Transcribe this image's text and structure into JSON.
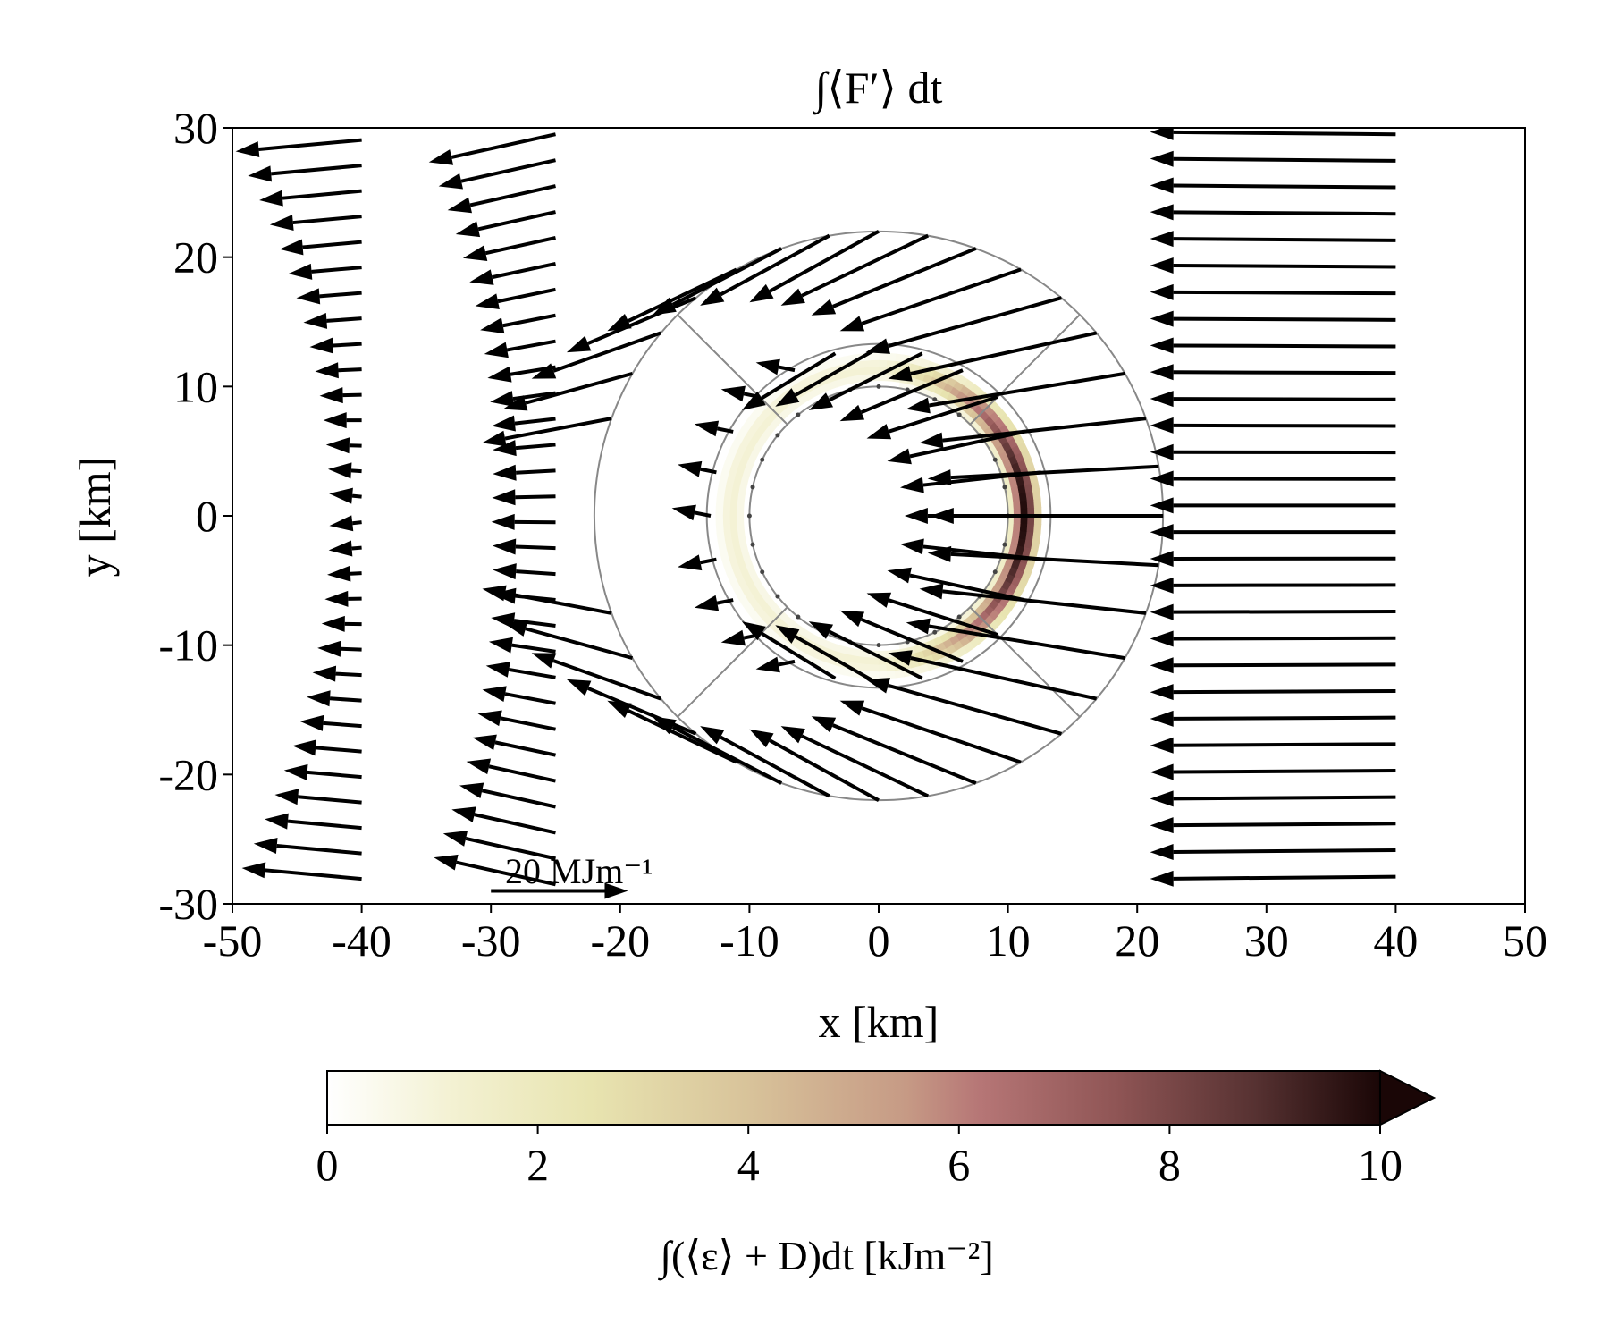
{
  "chart_data": {
    "type": "quiver",
    "title": "∫⟨F′⟩ dt",
    "xlabel": "x [km]",
    "ylabel": "y [km]",
    "xlim": [
      -50,
      50
    ],
    "ylim": [
      -30,
      30
    ],
    "xticks": [
      -50,
      -40,
      -30,
      -20,
      -10,
      0,
      10,
      20,
      30,
      40,
      50
    ],
    "yticks": [
      -30,
      -20,
      -10,
      0,
      10,
      20,
      30
    ],
    "xtick_labels": [
      "-50",
      "-40",
      "-30",
      "-20",
      "-10",
      "0",
      "10",
      "20",
      "30",
      "40",
      "50"
    ],
    "ytick_labels": [
      "-30",
      "-20",
      "-10",
      "0",
      "10",
      "20",
      "30"
    ],
    "grid": false,
    "quiver_key": {
      "label": "20 MJm⁻¹",
      "magnitude": 20,
      "x": -20,
      "y": -29
    },
    "domain_annotations": {
      "upstream_column_x": [
        -40,
        -25
      ],
      "downstream_column_x": 40,
      "inner_circle_radius_km": 10,
      "outer_circle_radius_km": 22,
      "ring_radius_km": 11
    },
    "colorbar": {
      "label": "∫(⟨ε⟩ + D)dt [kJm⁻²]",
      "range": [
        0,
        10
      ],
      "ticks": [
        0,
        2,
        4,
        6,
        8,
        10
      ],
      "tick_labels": [
        "0",
        "2",
        "4",
        "6",
        "8",
        "10"
      ],
      "extend": "max",
      "colormap": [
        "#ffffff",
        "#f3f1d2",
        "#e8e4b0",
        "#d8c39a",
        "#c69a85",
        "#b67676",
        "#8f5555",
        "#573232",
        "#1a0606"
      ]
    }
  }
}
